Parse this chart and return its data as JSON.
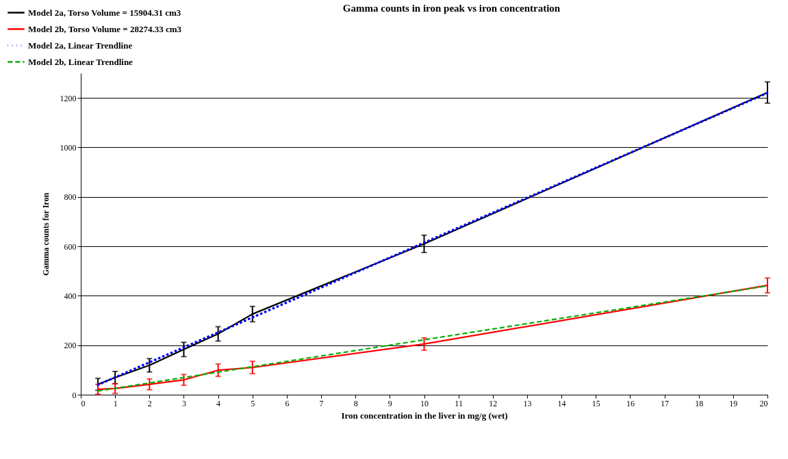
{
  "chart_data": {
    "type": "line",
    "title": "Gamma counts in iron peak vs iron concentration",
    "xlabel": "Iron concentration in the liver in mg/g (wet)",
    "ylabel": "Gamma counts for Iron",
    "xlim": [
      0,
      20
    ],
    "xticks": [
      0,
      1,
      2,
      3,
      4,
      5,
      6,
      7,
      8,
      9,
      10,
      11,
      12,
      13,
      14,
      15,
      16,
      17,
      18,
      19,
      20
    ],
    "ylim": [
      0,
      1300
    ],
    "yticks": [
      0,
      200,
      400,
      600,
      800,
      1000,
      1200
    ],
    "grid": "y",
    "legend": "top left",
    "marker": "none",
    "series": [
      {
        "name": "Model 2a, Torso Volume = 15904.31 cm3",
        "color": "#000000",
        "line_style": "solid",
        "x": [
          0.5,
          1,
          2,
          3,
          4,
          5,
          10,
          20
        ],
        "values": [
          42,
          69,
          119,
          183,
          246,
          326,
          610,
          1222
        ],
        "errors": [
          24,
          25,
          27,
          29,
          29,
          31,
          35,
          43
        ]
      },
      {
        "name": "Model 2b, Torso Volume = 28274.33 cm3",
        "color": "#ff0000",
        "line_style": "solid",
        "x": [
          0.5,
          1,
          2,
          3,
          4,
          5,
          10,
          20
        ],
        "values": [
          22,
          25,
          42,
          60,
          99,
          110,
          205,
          442
        ],
        "errors": [
          20,
          20,
          22,
          22,
          25,
          25,
          25,
          30
        ]
      },
      {
        "name": "Model 2a, Linear Trendline",
        "color": "#0000ff",
        "line_style": "dotted",
        "x": [
          0.5,
          20
        ],
        "values": [
          40,
          1220
        ]
      },
      {
        "name": "Model 2b, Linear Trendline",
        "color": "#00b000",
        "line_style": "dashed",
        "x": [
          0.5,
          20
        ],
        "values": [
          15,
          440
        ]
      }
    ]
  }
}
